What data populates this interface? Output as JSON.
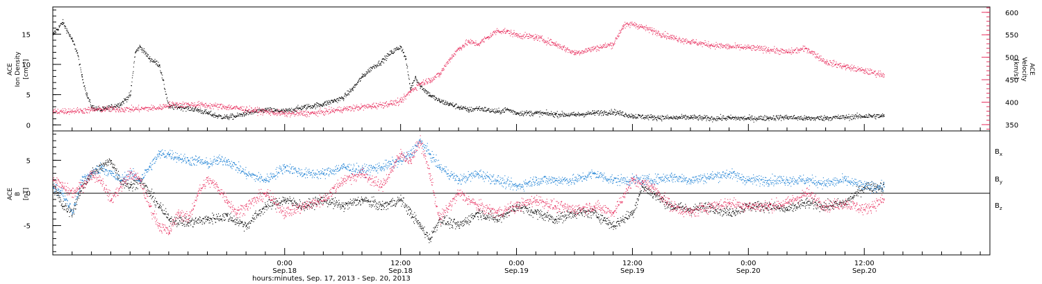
{
  "colors": {
    "black": "#000000",
    "pink": "#e8305f",
    "blue": "#1a7fd4"
  },
  "xaxis": {
    "label": "hours:minutes, Sep. 17, 2013 - Sep. 20, 2013",
    "ticks": [
      {
        "t": 24,
        "line1": "0:00",
        "line2": "Sep.18"
      },
      {
        "t": 36,
        "line1": "12:00",
        "line2": "Sep.18"
      },
      {
        "t": 48,
        "line1": "0:00",
        "line2": "Sep.19"
      },
      {
        "t": 60,
        "line1": "12:00",
        "line2": "Sep.19"
      },
      {
        "t": 72,
        "line1": "0:00",
        "line2": "Sep.20"
      },
      {
        "t": 84,
        "line1": "12:00",
        "line2": "Sep.20"
      }
    ]
  },
  "panels": {
    "top": {
      "left_label": [
        "ACE",
        "Ion Density",
        "[cm⁻³]"
      ],
      "right_label": [
        "ACE",
        "Velocity",
        "[km/s]"
      ],
      "left_ticks": [
        "0",
        "5",
        "10",
        "15"
      ],
      "right_ticks": [
        "350",
        "400",
        "450",
        "500",
        "550",
        "600"
      ]
    },
    "bottom": {
      "left_label": [
        "ACE",
        "B",
        "[nT]"
      ],
      "left_ticks": [
        "-5",
        "0",
        "5"
      ],
      "legend": [
        {
          "label": "Bx",
          "color": "#000000"
        },
        {
          "label": "By",
          "color": "#1a7fd4"
        },
        {
          "label": "Bz",
          "color": "#e8305f"
        }
      ]
    }
  },
  "chart_data": [
    {
      "type": "scatter",
      "title": "",
      "xlabel": "hours:minutes, Sep. 17, 2013 - Sep. 20, 2013",
      "x_unit": "hours since 2013-09-17 12:00",
      "xlim": [
        0,
        97
      ],
      "ylabel": "ACE Ion Density [cm⁻³]",
      "ylim": [
        -1,
        19.5
      ],
      "y2label": "ACE Velocity [km/s]",
      "y2lim": [
        336,
        612
      ],
      "series": [
        {
          "name": "Ion Density",
          "axis": "left",
          "color": "#000000",
          "x": [
            0,
            1,
            2,
            2.5,
            3,
            3.5,
            4,
            5,
            6,
            7,
            8,
            8.5,
            9,
            10,
            11,
            12,
            13,
            14,
            15,
            16,
            17,
            18,
            19,
            20,
            21,
            22,
            23,
            24,
            25,
            26,
            27,
            28,
            29,
            30,
            31,
            32,
            33,
            34,
            35,
            36,
            36.5,
            37,
            37.5,
            38,
            39,
            40,
            41,
            42,
            43,
            44,
            45,
            46,
            47,
            48,
            50,
            52,
            54,
            56,
            58,
            60,
            62,
            64,
            66,
            68,
            70,
            72,
            74,
            76,
            78,
            80,
            82,
            84,
            86
          ],
          "y": [
            15,
            17,
            14,
            12,
            8,
            5,
            3,
            2.5,
            3,
            3.5,
            5,
            12,
            13,
            11,
            10,
            3,
            3,
            2.8,
            2.5,
            2,
            1.5,
            1.3,
            1.5,
            2,
            2.2,
            2.5,
            2.4,
            2.3,
            2.6,
            3,
            3.2,
            3.5,
            4,
            4.5,
            6,
            8,
            9.5,
            10.5,
            12,
            13,
            11,
            6,
            8,
            6.5,
            5,
            4,
            3.5,
            3,
            2.5,
            2.8,
            2.5,
            2.2,
            2.6,
            2,
            2,
            1.8,
            1.7,
            2,
            2.2,
            1.5,
            1.3,
            1.2,
            1.3,
            1.1,
            1.2,
            1.1,
            1.2,
            1.3,
            1.1,
            1.2,
            1.3,
            1.5,
            1.5
          ]
        },
        {
          "name": "Velocity",
          "axis": "right",
          "color": "#e8305f",
          "x": [
            0,
            3,
            5,
            8,
            11,
            12,
            15,
            18,
            21,
            24,
            27,
            30,
            33,
            35,
            36,
            37,
            38,
            39,
            40,
            41,
            42,
            43,
            44,
            45,
            46,
            47,
            48,
            50,
            52,
            54,
            56,
            58,
            59,
            60,
            62,
            64,
            66,
            68,
            70,
            72,
            74,
            76,
            78,
            80,
            81,
            82,
            84,
            86
          ],
          "y": [
            380,
            382,
            385,
            385,
            388,
            395,
            395,
            390,
            382,
            375,
            376,
            385,
            392,
            398,
            402,
            425,
            442,
            450,
            462,
            495,
            520,
            535,
            530,
            545,
            560,
            558,
            550,
            545,
            530,
            510,
            520,
            530,
            570,
            575,
            560,
            545,
            535,
            528,
            524,
            522,
            518,
            512,
            520,
            490,
            485,
            480,
            470,
            462
          ]
        }
      ]
    },
    {
      "type": "scatter",
      "title": "",
      "xlabel": "hours:minutes, Sep. 17, 2013 - Sep. 20, 2013",
      "x_unit": "hours since 2013-09-17 12:00",
      "xlim": [
        0,
        97
      ],
      "ylabel": "ACE B [nT]",
      "ylim": [
        -9.5,
        9.5
      ],
      "zero_line": true,
      "series": [
        {
          "name": "Bx",
          "color": "#000000",
          "x": [
            0,
            1,
            2,
            3,
            4,
            5,
            6,
            7,
            8,
            9,
            10,
            11,
            12,
            14,
            16,
            18,
            20,
            22,
            24,
            26,
            28,
            30,
            32,
            34,
            36,
            37,
            38,
            39,
            40,
            42,
            44,
            46,
            48,
            50,
            52,
            54,
            56,
            58,
            60,
            61,
            62,
            64,
            66,
            68,
            70,
            72,
            74,
            76,
            78,
            80,
            82,
            84,
            86
          ],
          "y": [
            1,
            -2,
            -3,
            1,
            3,
            4,
            5,
            2,
            1,
            2,
            0,
            -2,
            -4,
            -4.5,
            -4,
            -3.5,
            -5,
            -2,
            -1,
            -2,
            -1,
            -2,
            -1,
            -2,
            -1,
            -3,
            -5,
            -7,
            -4,
            -5,
            -3,
            -4,
            -2,
            -3,
            -4,
            -3,
            -3,
            -5,
            -3,
            1,
            0,
            -2,
            -2.5,
            -2,
            -3,
            -2,
            -2,
            -2.5,
            -1.5,
            -2,
            -1.5,
            1,
            1
          ]
        },
        {
          "name": "By",
          "color": "#1a7fd4",
          "x": [
            0,
            1,
            2,
            3,
            4,
            5,
            6,
            7,
            8,
            9,
            10,
            11,
            12,
            13,
            14,
            15,
            16,
            17,
            18,
            20,
            22,
            24,
            26,
            28,
            30,
            32,
            34,
            36,
            37,
            38,
            39,
            40,
            42,
            44,
            46,
            48,
            50,
            52,
            54,
            56,
            58,
            60,
            62,
            64,
            66,
            68,
            70,
            72,
            74,
            76,
            78,
            80,
            82,
            84,
            86
          ],
          "y": [
            1,
            0,
            -3,
            2,
            3,
            4,
            3,
            2,
            3,
            2,
            4,
            6,
            6,
            5.5,
            5,
            5,
            4.5,
            5,
            5,
            3,
            2,
            4,
            3,
            3,
            4,
            3.5,
            4,
            5,
            6,
            8,
            6,
            4,
            2,
            3,
            2,
            1,
            2,
            2,
            2,
            3,
            2,
            2,
            2,
            2.5,
            2,
            2.5,
            3,
            2,
            2,
            2,
            2,
            1.5,
            2,
            1,
            1
          ]
        },
        {
          "name": "Bz",
          "color": "#e8305f",
          "x": [
            0,
            1,
            2,
            3,
            4,
            5,
            6,
            7,
            8,
            9,
            10,
            11,
            12,
            13,
            14,
            15,
            16,
            17,
            18,
            19,
            20,
            22,
            24,
            26,
            28,
            30,
            32,
            34,
            36,
            37,
            38,
            39,
            40,
            42,
            44,
            46,
            48,
            50,
            52,
            54,
            56,
            58,
            60,
            62,
            64,
            66,
            68,
            70,
            72,
            74,
            76,
            78,
            80,
            82,
            84,
            86
          ],
          "y": [
            2,
            1,
            0,
            1,
            3,
            2,
            -1,
            1,
            3,
            2,
            -2,
            -5,
            -6,
            -3,
            -4,
            0,
            2,
            1,
            -1,
            -3,
            -2,
            0,
            -3,
            -2,
            -1,
            2,
            3,
            1,
            6,
            5,
            8,
            3,
            -4,
            0,
            -2,
            -3,
            -2,
            -1,
            -2,
            -2.5,
            -2,
            -3,
            2,
            1,
            -2,
            -3,
            -2,
            -1.5,
            -2,
            -2,
            -1.5,
            0,
            -2,
            -1.5,
            -2.5,
            -1
          ]
        }
      ]
    }
  ]
}
